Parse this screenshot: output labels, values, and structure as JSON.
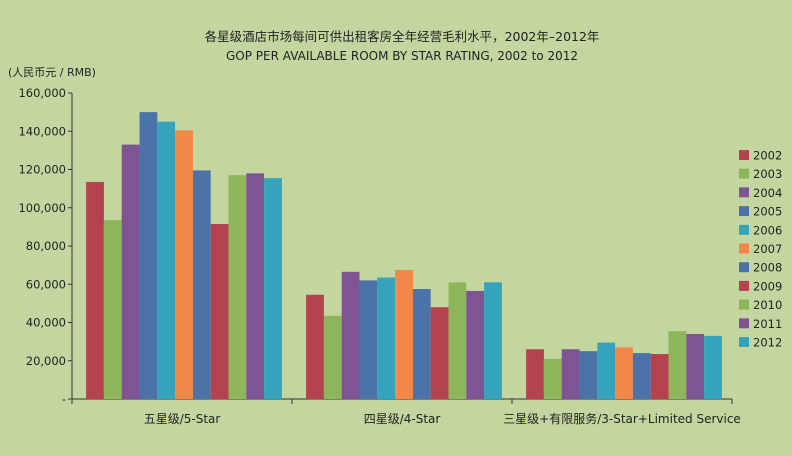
{
  "chart_data": {
    "type": "bar",
    "title": "各星级酒店市场每间可供出租客房全年经营毛利水平，2002年–2012年",
    "subtitle": "GOP PER AVAILABLE ROOM BY STAR RATING, 2002 to 2012",
    "ylabel": "(人民币元 / RMB)",
    "xlabel": "",
    "ylim": [
      0,
      160000
    ],
    "yticks": [
      0,
      20000,
      40000,
      60000,
      80000,
      100000,
      120000,
      140000,
      160000
    ],
    "ytick_labels": [
      "-",
      "20,000",
      "40,000",
      "60,000",
      "80,000",
      "100,000",
      "120,000",
      "140,000",
      "160,000"
    ],
    "categories": [
      "五星级/5-Star",
      "四星级/4-Star",
      "三星级+有限服务/3-Star+Limited Service"
    ],
    "grid": false,
    "legend_position": "right",
    "series": [
      {
        "name": "2002",
        "color": "#b5434f",
        "values": [
          113500,
          54500,
          26000
        ]
      },
      {
        "name": "2003",
        "color": "#8db65b",
        "values": [
          93500,
          43500,
          21000
        ]
      },
      {
        "name": "2004",
        "color": "#7f5493",
        "values": [
          133000,
          66500,
          26000
        ]
      },
      {
        "name": "2005",
        "color": "#4c73a7",
        "values": [
          150000,
          62000,
          25000
        ]
      },
      {
        "name": "2006",
        "color": "#36a3bd",
        "values": [
          145000,
          63500,
          29500
        ]
      },
      {
        "name": "2007",
        "color": "#f2874a",
        "values": [
          140500,
          67500,
          27000
        ]
      },
      {
        "name": "2008",
        "color": "#4c73a7",
        "values": [
          119500,
          57500,
          24000
        ]
      },
      {
        "name": "2009",
        "color": "#b5434f",
        "values": [
          91500,
          48000,
          23500
        ]
      },
      {
        "name": "2010",
        "color": "#8db65b",
        "values": [
          117000,
          61000,
          35500
        ]
      },
      {
        "name": "2011",
        "color": "#7f5493",
        "values": [
          118000,
          56500,
          34000
        ]
      },
      {
        "name": "2012",
        "color": "#36a3bd",
        "values": [
          115500,
          61000,
          33000
        ]
      }
    ]
  }
}
